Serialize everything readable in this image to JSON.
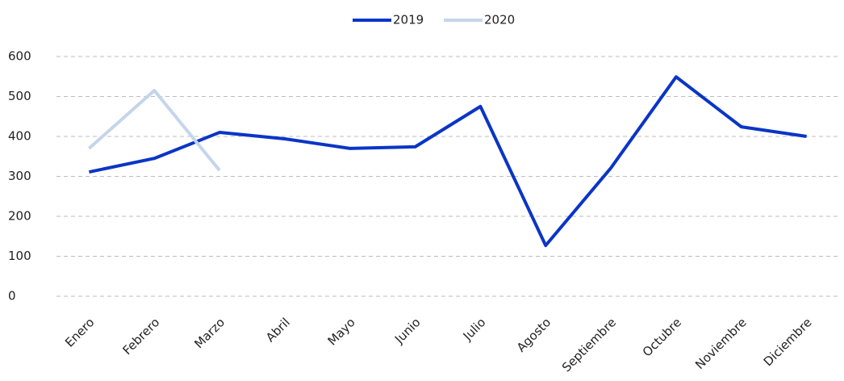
{
  "chart_data": {
    "type": "line",
    "categories": [
      "Enero",
      "Febrero",
      "Marzo",
      "Abril",
      "Mayo",
      "Junio",
      "Julio",
      "Agosto",
      "Septiembre",
      "Octubre",
      "Noviembre",
      "Diciembre"
    ],
    "series": [
      {
        "name": "2019",
        "color": "#0a35c6",
        "values": [
          311,
          345,
          410,
          394,
          370,
          374,
          475,
          127,
          321,
          549,
          424,
          400
        ]
      },
      {
        "name": "2020",
        "color": "#c5d5ea",
        "values": [
          370,
          515,
          315,
          null,
          null,
          null,
          null,
          null,
          null,
          null,
          null,
          null
        ]
      }
    ],
    "ylim": [
      0,
      600
    ],
    "yticks": [
      0,
      100,
      200,
      300,
      400,
      500,
      600
    ],
    "grid": true,
    "legend": "top"
  }
}
